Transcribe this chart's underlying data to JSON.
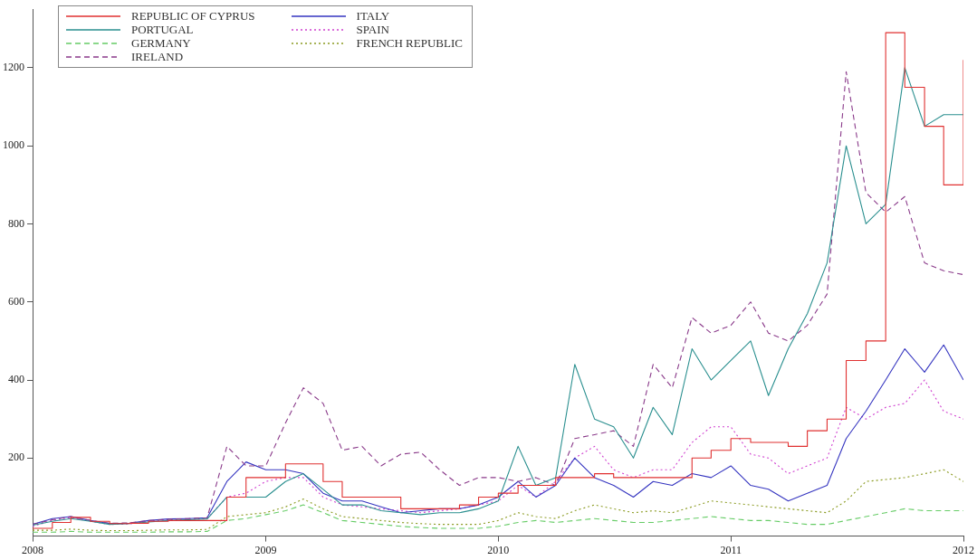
{
  "chart_data": {
    "type": "line",
    "x": [
      "2008-01",
      "2008-02",
      "2008-03",
      "2008-04",
      "2008-05",
      "2008-06",
      "2008-07",
      "2008-08",
      "2008-09",
      "2008-10",
      "2008-11",
      "2008-12",
      "2009-01",
      "2009-02",
      "2009-03",
      "2009-04",
      "2009-05",
      "2009-06",
      "2009-07",
      "2009-08",
      "2009-09",
      "2009-10",
      "2009-11",
      "2009-12",
      "2010-01",
      "2010-02",
      "2010-03",
      "2010-04",
      "2010-05",
      "2010-06",
      "2010-07",
      "2010-08",
      "2010-09",
      "2010-10",
      "2010-11",
      "2010-12",
      "2011-01",
      "2011-02",
      "2011-03",
      "2011-04",
      "2011-05",
      "2011-06",
      "2011-07",
      "2011-08",
      "2011-09",
      "2011-10",
      "2011-11",
      "2011-12",
      "2012-01"
    ],
    "xlim": [
      "2008",
      "2012"
    ],
    "xticks": [
      "2008",
      "2009",
      "2010",
      "2011",
      "2012"
    ],
    "ylim": [
      0,
      1350
    ],
    "yticks": [
      200,
      400,
      600,
      800,
      1000,
      1200
    ],
    "grid": false,
    "legend": "top left",
    "marker": "none",
    "series": [
      {
        "name": "REPUBLIC OF CYPRUS",
        "type": "step",
        "color": "#e03030",
        "line_style": "solid",
        "values": [
          20,
          35,
          48,
          38,
          32,
          33,
          38,
          40,
          40,
          40,
          100,
          150,
          150,
          185,
          185,
          140,
          100,
          100,
          100,
          70,
          70,
          70,
          80,
          100,
          110,
          130,
          130,
          150,
          150,
          160,
          150,
          150,
          150,
          150,
          200,
          220,
          250,
          240,
          240,
          230,
          270,
          300,
          450,
          500,
          1290,
          1150,
          1050,
          900,
          1220
        ]
      },
      {
        "name": "PORTUGAL",
        "color": "#2a8f8f",
        "line_style": "solid",
        "values": [
          28,
          38,
          45,
          38,
          30,
          32,
          36,
          40,
          42,
          44,
          100,
          100,
          100,
          140,
          160,
          120,
          80,
          80,
          65,
          60,
          55,
          60,
          60,
          70,
          90,
          230,
          130,
          150,
          440,
          300,
          280,
          200,
          330,
          260,
          480,
          400,
          450,
          500,
          360,
          480,
          570,
          700,
          1000,
          800,
          850,
          1200,
          1050,
          1080,
          1080
        ]
      },
      {
        "name": "GERMANY",
        "color": "#66cc66",
        "line_style": "dashed",
        "values": [
          10,
          10,
          12,
          10,
          10,
          10,
          10,
          11,
          11,
          12,
          40,
          45,
          55,
          65,
          80,
          60,
          40,
          35,
          30,
          25,
          22,
          20,
          20,
          20,
          25,
          35,
          40,
          35,
          40,
          45,
          40,
          35,
          35,
          40,
          45,
          50,
          45,
          40,
          40,
          35,
          30,
          30,
          40,
          50,
          60,
          70,
          65,
          65,
          65
        ]
      },
      {
        "name": "IRELAND",
        "color": "#8a3a8a",
        "line_style": "dashed",
        "values": [
          30,
          42,
          50,
          40,
          33,
          34,
          40,
          43,
          45,
          47,
          230,
          180,
          180,
          290,
          380,
          340,
          220,
          230,
          180,
          210,
          215,
          170,
          130,
          150,
          150,
          140,
          150,
          130,
          250,
          260,
          270,
          230,
          440,
          380,
          560,
          520,
          540,
          600,
          520,
          500,
          540,
          620,
          1190,
          880,
          830,
          870,
          700,
          680,
          670
        ]
      },
      {
        "name": "ITALY",
        "color": "#3535c0",
        "line_style": "solid",
        "values": [
          30,
          45,
          50,
          40,
          32,
          33,
          40,
          44,
          45,
          47,
          140,
          190,
          170,
          170,
          160,
          110,
          90,
          90,
          75,
          60,
          65,
          70,
          70,
          80,
          100,
          140,
          100,
          130,
          200,
          150,
          130,
          100,
          140,
          130,
          160,
          150,
          180,
          130,
          120,
          90,
          110,
          130,
          250,
          320,
          400,
          480,
          420,
          490,
          400
        ]
      },
      {
        "name": "SPAIN",
        "color": "#d040d0",
        "line_style": "dotted",
        "values": [
          25,
          40,
          48,
          38,
          30,
          31,
          38,
          42,
          43,
          45,
          100,
          110,
          140,
          150,
          150,
          100,
          80,
          75,
          70,
          65,
          60,
          65,
          70,
          80,
          90,
          130,
          100,
          140,
          200,
          230,
          170,
          150,
          170,
          170,
          240,
          280,
          280,
          210,
          200,
          160,
          180,
          200,
          330,
          300,
          330,
          340,
          400,
          320,
          300
        ]
      },
      {
        "name": "FRENCH REPUBLIC",
        "color": "#8a9a20",
        "line_style": "dotted",
        "values": [
          15,
          15,
          18,
          15,
          14,
          14,
          15,
          16,
          16,
          17,
          50,
          55,
          60,
          75,
          95,
          70,
          50,
          45,
          40,
          35,
          32,
          30,
          30,
          30,
          40,
          60,
          50,
          45,
          65,
          80,
          70,
          60,
          65,
          60,
          75,
          90,
          85,
          80,
          75,
          70,
          65,
          60,
          90,
          140,
          145,
          150,
          160,
          170,
          140
        ]
      }
    ]
  }
}
